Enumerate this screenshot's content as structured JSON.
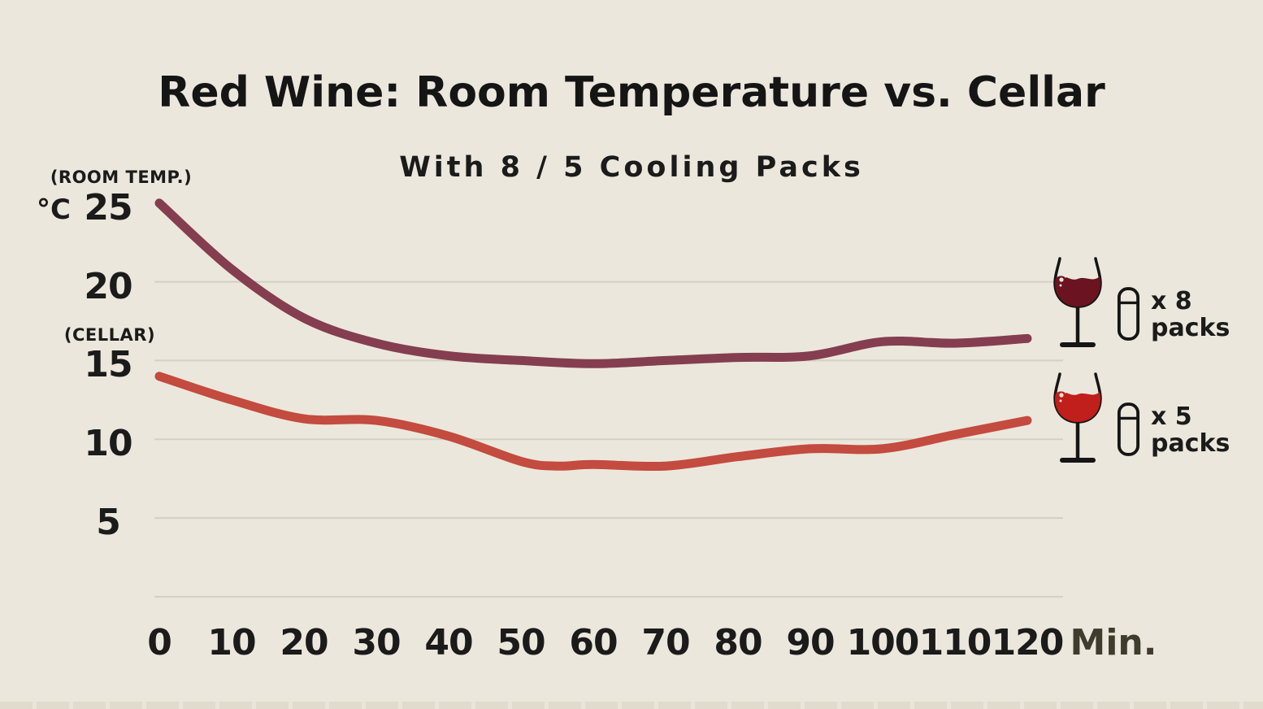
{
  "page": {
    "background": "#ece7dc",
    "title": "Red Wine: Room Temperature vs. Cellar",
    "subtitle": "With 8 / 5 Cooling Packs"
  },
  "chart_data": {
    "type": "line",
    "title": "Red Wine: Room Temperature vs. Cellar",
    "subtitle": "With 8 / 5 Cooling Packs",
    "xlabel": "Min.",
    "y_unit": "°C",
    "x_ticks": [
      0,
      10,
      20,
      30,
      40,
      50,
      60,
      70,
      80,
      90,
      100,
      110,
      120
    ],
    "y_ticks": [
      25,
      20,
      15,
      10,
      5
    ],
    "gridline_values": [
      20,
      15,
      10,
      5,
      0
    ],
    "ylim": [
      0,
      26
    ],
    "xlim": [
      0,
      120
    ],
    "grid": true,
    "legend_position": "right",
    "colors": {
      "background": "#ece7dc",
      "gridline": "#d4d0c3",
      "text": "#1b1b1b",
      "x_unit_text": "#3e3c2d"
    },
    "series": [
      {
        "name": "room-temperature",
        "annotation": "(ROOM TEMP.)",
        "color": "#843e50",
        "wine_color": "#6b1320",
        "legend": {
          "multiplier": "x 8",
          "unit": "packs"
        },
        "x": [
          0,
          10,
          20,
          30,
          40,
          50,
          60,
          70,
          80,
          90,
          100,
          110,
          120
        ],
        "values": [
          25,
          20.8,
          17.7,
          16.1,
          15.3,
          15.0,
          14.8,
          15.0,
          15.2,
          15.3,
          16.2,
          16.1,
          16.4
        ]
      },
      {
        "name": "cellar",
        "annotation": "(CELLAR)",
        "color": "#c34b3f",
        "wine_color": "#c01f1b",
        "legend": {
          "multiplier": "x 5",
          "unit": "packs"
        },
        "x": [
          0,
          10,
          20,
          30,
          40,
          50,
          55,
          60,
          70,
          80,
          90,
          100,
          110,
          120
        ],
        "values": [
          14.0,
          12.5,
          11.3,
          11.2,
          10.2,
          8.6,
          8.3,
          8.4,
          8.3,
          8.9,
          9.4,
          9.4,
          10.3,
          11.2
        ]
      }
    ]
  }
}
